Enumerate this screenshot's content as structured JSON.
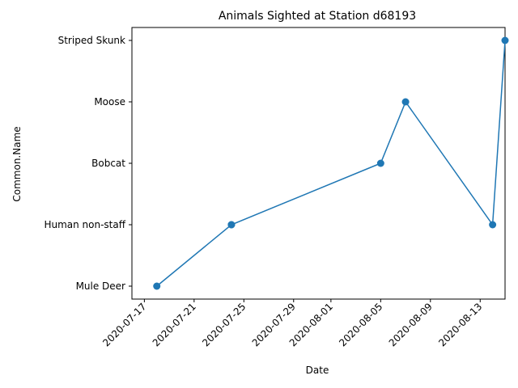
{
  "chart_data": {
    "type": "line",
    "title": "Animals Sighted at Station d68193",
    "xlabel": "Date",
    "ylabel": "Common.Name",
    "categories_y": [
      "Mule Deer",
      "Human non-staff",
      "Bobcat",
      "Moose",
      "Striped Skunk"
    ],
    "x_ticks": [
      "2020-07-17",
      "2020-07-21",
      "2020-07-25",
      "2020-07-29",
      "2020-08-01",
      "2020-08-05",
      "2020-08-09",
      "2020-08-13"
    ],
    "xlim": [
      "2020-07-16",
      "2020-08-15"
    ],
    "grid": false,
    "color": "#1f77b4",
    "series": [
      {
        "x": [
          "2020-07-18",
          "2020-07-24",
          "2020-07-24",
          "2020-08-05",
          "2020-08-07",
          "2020-08-14",
          "2020-08-15"
        ],
        "y": [
          "Mule Deer",
          "Human non-staff",
          "Human non-staff",
          "Bobcat",
          "Moose",
          "Human non-staff",
          "Striped Skunk"
        ]
      }
    ]
  }
}
